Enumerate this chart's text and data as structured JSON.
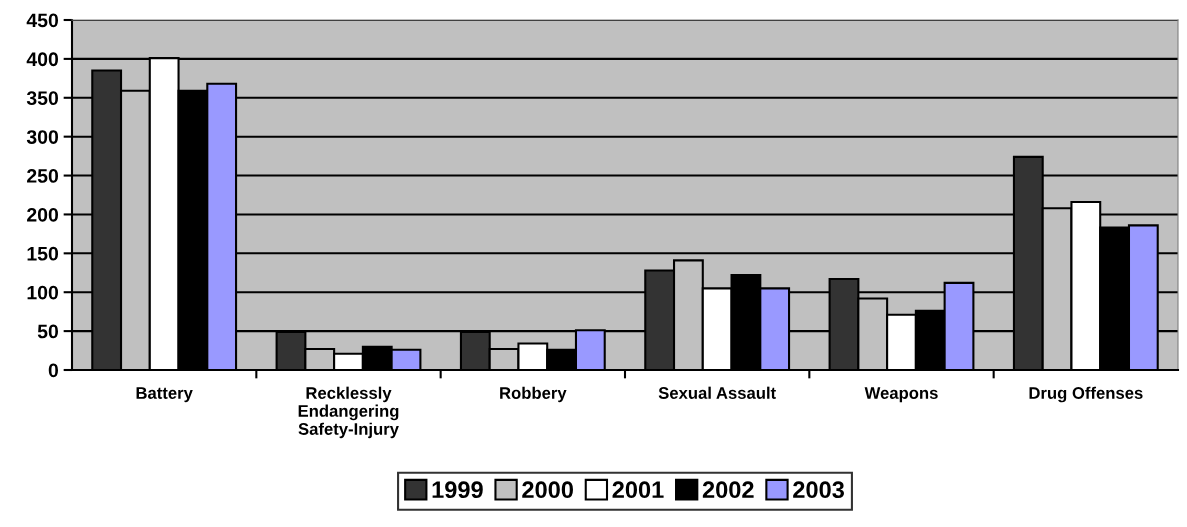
{
  "chart_data": {
    "type": "bar",
    "categories": [
      "Battery",
      "Recklessly\nEndangering\nSafety-Injury",
      "Robbery",
      "Sexual Assault",
      "Weapons",
      "Drug Offenses"
    ],
    "series": [
      {
        "name": "1999",
        "color": "#333333",
        "values": [
          385,
          49,
          49,
          128,
          117,
          274
        ]
      },
      {
        "name": "2000",
        "color": "#c0c0c0",
        "values": [
          359,
          27,
          27,
          141,
          92,
          208
        ]
      },
      {
        "name": "2001",
        "color": "#ffffff",
        "values": [
          401,
          21,
          34,
          105,
          71,
          216
        ]
      },
      {
        "name": "2002",
        "color": "#000000",
        "values": [
          359,
          30,
          26,
          122,
          76,
          183
        ]
      },
      {
        "name": "2003",
        "color": "#9999ff",
        "values": [
          368,
          26,
          51,
          105,
          112,
          186
        ]
      }
    ],
    "ylim": [
      0,
      450
    ],
    "yticks": [
      0,
      50,
      100,
      150,
      200,
      250,
      300,
      350,
      400,
      450
    ],
    "grid": "y",
    "legend": "bottom"
  }
}
